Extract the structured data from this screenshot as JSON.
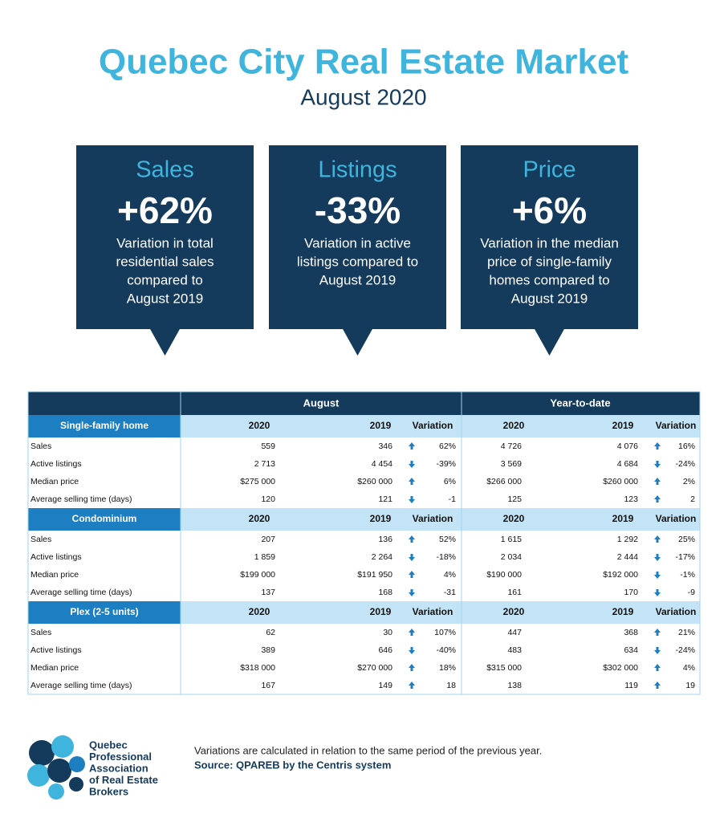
{
  "header": {
    "title": "Quebec City Real Estate Market",
    "subtitle": "August 2020"
  },
  "cards": [
    {
      "title": "Sales",
      "value": "+62%",
      "lines": [
        "Variation in total",
        "residential sales",
        "compared to",
        "August 2019"
      ]
    },
    {
      "title": "Listings",
      "value": "-33%",
      "lines": [
        "Variation in active",
        "listings compared to",
        "August 2019"
      ]
    },
    {
      "title": "Price",
      "value": "+6%",
      "lines": [
        "Variation in the median",
        "price of single-family",
        "homes compared to",
        "August 2019"
      ]
    }
  ],
  "table": {
    "groups": [
      "August",
      "Year-to-date"
    ],
    "sections": [
      {
        "name": "Single-family home",
        "columns": [
          "2020",
          "2019",
          "Variation",
          "2020",
          "2019",
          "Variation"
        ],
        "rows": [
          [
            "Sales",
            "559",
            "346",
            "62%",
            "4 726",
            "4 076",
            "16%"
          ],
          [
            "Active listings",
            "2 713",
            "4 454",
            "-39%",
            "3 569",
            "4 684",
            "-24%"
          ],
          [
            "Median price",
            "$275 000",
            "$260 000",
            "6%",
            "$266 000",
            "$260 000",
            "2%"
          ],
          [
            "Average selling time (days)",
            "120",
            "121",
            "-1",
            "125",
            "123",
            "2"
          ]
        ]
      },
      {
        "name": "Condominium",
        "columns": [
          "2020",
          "2019",
          "Variation",
          "2020",
          "2019",
          "Variation"
        ],
        "rows": [
          [
            "Sales",
            "207",
            "136",
            "52%",
            "1 615",
            "1 292",
            "25%"
          ],
          [
            "Active listings",
            "1 859",
            "2 264",
            "-18%",
            "2 034",
            "2 444",
            "-17%"
          ],
          [
            "Median price",
            "$199 000",
            "$191 950",
            "4%",
            "$190 000",
            "$192 000",
            "-1%"
          ],
          [
            "Average selling time (days)",
            "137",
            "168",
            "-31",
            "161",
            "170",
            "-9"
          ]
        ]
      },
      {
        "name": "Plex (2-5 units)",
        "columns": [
          "2020",
          "2019",
          "Variation",
          "2020",
          "2019",
          "Variation"
        ],
        "rows": [
          [
            "Sales",
            "62",
            "30",
            "107%",
            "447",
            "368",
            "21%"
          ],
          [
            "Active listings",
            "389",
            "646",
            "-40%",
            "483",
            "634",
            "-24%"
          ],
          [
            "Median price",
            "$318 000",
            "$270 000",
            "18%",
            "$315 000",
            "$302 000",
            "4%"
          ],
          [
            "Average selling time (days)",
            "167",
            "149",
            "18",
            "138",
            "119",
            "19"
          ]
        ]
      }
    ]
  },
  "footer": {
    "logo": [
      "Quebec",
      "Professional",
      "Association",
      "of Real Estate",
      "Brokers"
    ],
    "note": "Variations are calculated in relation to the same period of the previous year.",
    "source": "Source: QPAREB by the Centris system"
  }
}
